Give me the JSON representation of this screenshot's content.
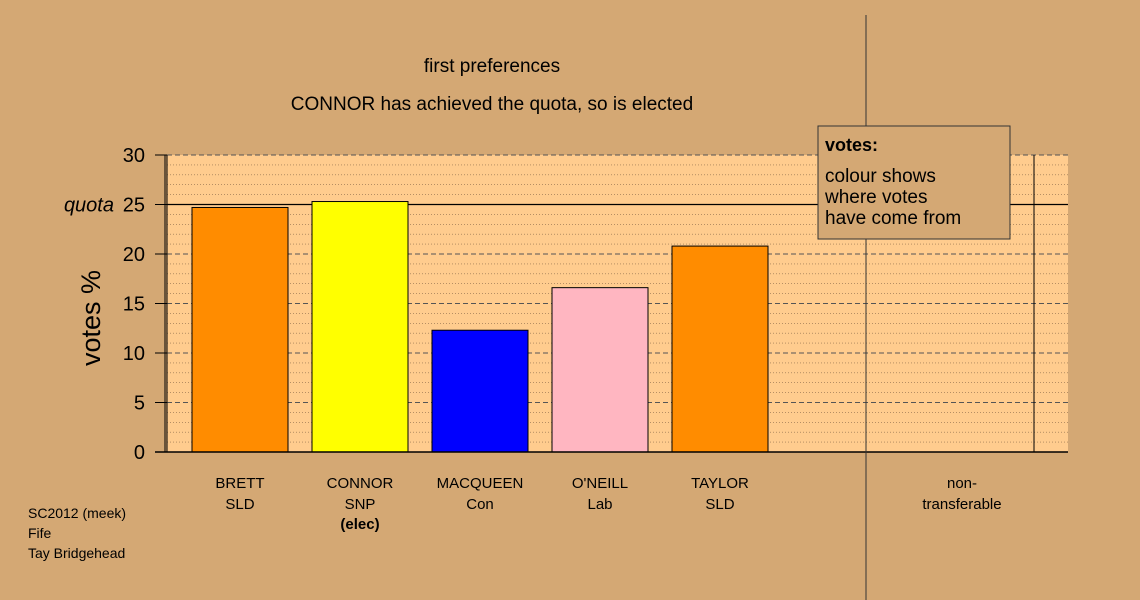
{
  "chart_data": {
    "type": "bar",
    "title": "first preferences",
    "subtitle": "CONNOR has achieved the quota, so is elected",
    "ylabel": "votes %",
    "ylim": [
      0,
      30
    ],
    "yticks": [
      "0",
      "5",
      "10",
      "15",
      "20",
      "25",
      "30"
    ],
    "quota_label": "quota",
    "quota_value": 25,
    "categories": [
      {
        "name": "BRETT",
        "party": "SLD",
        "note": "",
        "value": 24.7,
        "color": "#ff8c00"
      },
      {
        "name": "CONNOR",
        "party": "SNP",
        "note": "(elec)",
        "value": 25.3,
        "color": "#ffff00"
      },
      {
        "name": "MACQUEEN",
        "party": "Con",
        "note": "",
        "value": 12.3,
        "color": "#0000ff"
      },
      {
        "name": "O'NEILL",
        "party": "Lab",
        "note": "",
        "value": 16.6,
        "color": "#ffb6c1"
      },
      {
        "name": "TAYLOR",
        "party": "SLD",
        "note": "",
        "value": 20.8,
        "color": "#ff8c00"
      }
    ],
    "nontransferable": {
      "label_line1": "non-",
      "label_line2": "transferable",
      "value": 0
    },
    "legend": {
      "title": "votes:",
      "lines": [
        "colour shows",
        "where votes",
        "have come from"
      ],
      "placement": "top-right"
    },
    "footer": [
      "SC2012 (meek)",
      "Fife",
      "Tay Bridgehead"
    ],
    "colors": {
      "background": "#d4a874",
      "plot_area": "#ffcc8e",
      "grid": "#555555"
    }
  }
}
